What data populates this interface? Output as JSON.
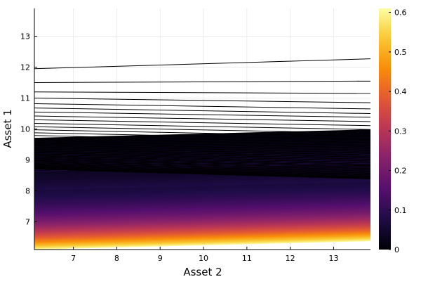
{
  "chart_data": {
    "type": "heatmap",
    "title": "",
    "xlabel": "Asset 2",
    "ylabel": "Asset 1",
    "xlim": [
      6.1,
      13.85
    ],
    "ylim": [
      6.1,
      13.9
    ],
    "xticks": [
      7,
      8,
      9,
      10,
      11,
      12,
      13
    ],
    "yticks": [
      7,
      8,
      9,
      10,
      11,
      12,
      13
    ],
    "grid": true,
    "colormap": "inferno",
    "colorbar": {
      "range": [
        0,
        0.61
      ],
      "ticks": [
        0,
        0.1,
        0.2,
        0.3,
        0.4,
        0.5,
        0.6
      ],
      "tick_labels": [
        "0",
        "0.1",
        "0.2",
        "0.3",
        "0.4",
        "0.5",
        "0.6"
      ]
    },
    "surface_description": "contour surface highest (~0.6) at lowest Asset 1 and low Asset 2, decreasing toward 0 as Asset 1 increases; slight rise of level lines with Asset 2",
    "contour_lines": [
      {
        "level_index": 1,
        "y_at_xmin": 11.95,
        "y_at_xmax": 12.27
      },
      {
        "level_index": 2,
        "y_at_xmin": 11.5,
        "y_at_xmax": 11.55
      },
      {
        "level_index": 3,
        "y_at_xmin": 11.2,
        "y_at_xmax": 11.15
      },
      {
        "level_index": 4,
        "y_at_xmin": 11.0,
        "y_at_xmax": 10.85
      },
      {
        "level_index": 5,
        "y_at_xmin": 10.82,
        "y_at_xmax": 10.65
      },
      {
        "level_index": 6,
        "y_at_xmin": 10.68,
        "y_at_xmax": 10.5
      }
    ],
    "colors": {
      "background": "#ffffff",
      "contour_line": "#000000",
      "grid": "#e8e8e8"
    }
  }
}
